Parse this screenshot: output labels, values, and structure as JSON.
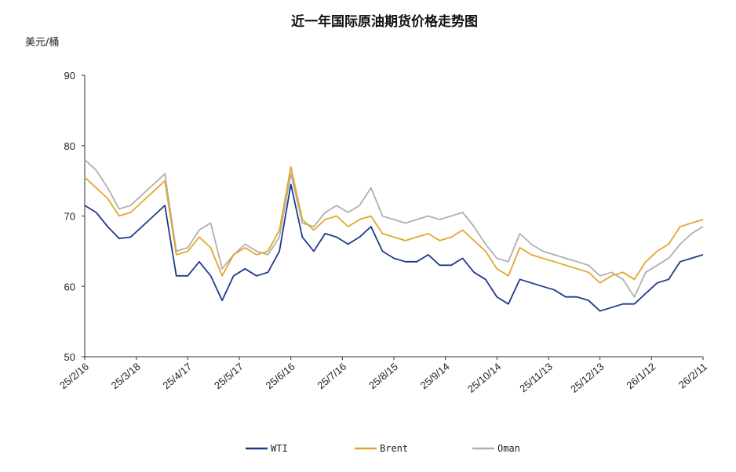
{
  "chart_data": {
    "type": "line",
    "title": "近一年国际原油期货价格走势图",
    "ylabel": "美元/桶",
    "xlabel": "",
    "ylim": [
      50,
      90
    ],
    "yticks": [
      50,
      60,
      70,
      80,
      90
    ],
    "xticks": [
      "25/2/16",
      "25/3/18",
      "25/4/17",
      "25/5/17",
      "25/6/16",
      "25/7/16",
      "25/8/15",
      "25/9/14",
      "25/10/14",
      "25/11/13",
      "25/12/13",
      "26/1/12",
      "26/2/11"
    ],
    "legend_position": "bottom",
    "x": [
      "25/2/16",
      "25/2/23",
      "25/3/2",
      "25/3/9",
      "25/3/16",
      "25/3/23",
      "25/3/30",
      "25/4/1",
      "25/4/6",
      "25/4/13",
      "25/4/20",
      "25/4/27",
      "25/5/4",
      "25/5/11",
      "25/5/18",
      "25/5/25",
      "25/6/1",
      "25/6/8",
      "25/6/13",
      "25/6/18",
      "25/6/24",
      "25/7/1",
      "25/7/8",
      "25/7/15",
      "25/7/22",
      "25/7/29",
      "25/8/3",
      "25/8/10",
      "25/8/17",
      "25/8/24",
      "25/8/31",
      "25/9/7",
      "25/9/14",
      "25/9/21",
      "25/9/28",
      "25/10/5",
      "25/10/12",
      "25/10/19",
      "25/10/26",
      "25/11/2",
      "25/11/9",
      "25/11/16",
      "25/11/23",
      "25/11/30",
      "25/12/7",
      "25/12/14",
      "25/12/21",
      "25/12/28",
      "26/1/4",
      "26/1/11",
      "26/1/18",
      "26/1/25",
      "26/2/1",
      "26/2/8",
      "26/2/11"
    ],
    "series": [
      {
        "name": "WTI",
        "color": "#1f3a8a",
        "values": [
          71.5,
          70.5,
          68.5,
          66.8,
          67.0,
          68.5,
          70.0,
          71.5,
          61.5,
          61.5,
          63.5,
          61.5,
          58.0,
          61.5,
          62.5,
          61.5,
          62.0,
          65.0,
          74.5,
          67.0,
          65.0,
          67.5,
          67.0,
          66.0,
          67.0,
          68.5,
          65.0,
          64.0,
          63.5,
          63.5,
          64.5,
          63.0,
          63.0,
          64.0,
          62.0,
          61.0,
          58.5,
          57.5,
          61.0,
          60.5,
          60.0,
          59.5,
          58.5,
          58.5,
          58.0,
          56.5,
          57.0,
          57.5,
          57.5,
          59.0,
          60.5,
          61.0,
          63.5,
          64.0,
          64.5
        ]
      },
      {
        "name": "Brent",
        "color": "#e0a82e",
        "values": [
          75.5,
          74.0,
          72.5,
          70.0,
          70.5,
          72.0,
          73.5,
          75.0,
          64.5,
          65.0,
          67.0,
          65.5,
          61.5,
          64.5,
          65.5,
          64.5,
          65.0,
          68.0,
          77.0,
          69.5,
          68.0,
          69.5,
          70.0,
          68.5,
          69.5,
          70.0,
          67.5,
          67.0,
          66.5,
          67.0,
          67.5,
          66.5,
          67.0,
          68.0,
          66.5,
          65.0,
          62.5,
          61.5,
          65.5,
          64.5,
          64.0,
          63.5,
          63.0,
          62.5,
          62.0,
          60.5,
          61.5,
          62.0,
          61.0,
          63.5,
          65.0,
          66.0,
          68.5,
          69.0,
          69.5
        ]
      },
      {
        "name": "Oman",
        "color": "#b0b0b0",
        "values": [
          78.0,
          76.5,
          74.0,
          71.0,
          71.5,
          73.0,
          74.5,
          76.0,
          65.0,
          65.5,
          68.0,
          69.0,
          62.5,
          64.5,
          66.0,
          65.0,
          64.5,
          67.0,
          76.0,
          69.0,
          68.5,
          70.5,
          71.5,
          70.5,
          71.5,
          74.0,
          70.0,
          69.5,
          69.0,
          69.5,
          70.0,
          69.5,
          70.0,
          70.5,
          68.5,
          66.0,
          64.0,
          63.5,
          67.5,
          66.0,
          65.0,
          64.5,
          64.0,
          63.5,
          63.0,
          61.5,
          62.0,
          61.0,
          58.5,
          62.0,
          63.0,
          64.0,
          66.0,
          67.5,
          68.5
        ]
      }
    ]
  }
}
